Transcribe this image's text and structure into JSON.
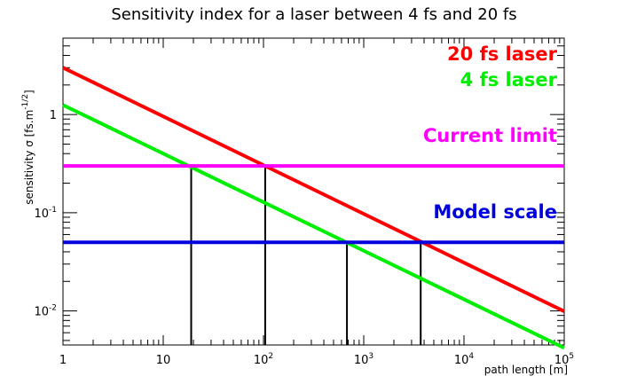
{
  "chart_data": {
    "type": "line",
    "title": "Sensitivity index for a laser between 4 fs and 20 fs",
    "xlabel": "path length [m]",
    "ylabel": {
      "main": "sensitivity σ [fs.m",
      "exponent": "-1/2",
      "close": "]"
    },
    "xscale": "log",
    "yscale": "log",
    "xlim": [
      1,
      100000
    ],
    "ylim": [
      0.0045,
      6.0
    ],
    "x_ticks": [
      {
        "value": 1,
        "label": "1"
      },
      {
        "value": 10,
        "label": "10"
      },
      {
        "value": 100,
        "base": "10",
        "exp": "2"
      },
      {
        "value": 1000,
        "base": "10",
        "exp": "3"
      },
      {
        "value": 10000,
        "base": "10",
        "exp": "4"
      },
      {
        "value": 100000,
        "base": "10",
        "exp": "5"
      }
    ],
    "y_ticks": [
      {
        "value": 1,
        "label": "1"
      },
      {
        "value": 0.1,
        "base": "10",
        "exp": "-1"
      },
      {
        "value": 0.01,
        "base": "10",
        "exp": "-2"
      }
    ],
    "series": [
      {
        "name": "20 fs laser",
        "color": "#ff0000",
        "x": [
          1,
          100000
        ],
        "y": [
          3.0,
          0.0099
        ]
      },
      {
        "name": "4 fs laser",
        "color": "#00ee00",
        "x": [
          1,
          100000
        ],
        "y": [
          1.25,
          0.0042
        ]
      },
      {
        "name": "Current limit",
        "color": "#ff00ff",
        "x": [
          1,
          100000
        ],
        "y": [
          0.3,
          0.3
        ]
      },
      {
        "name": "Model scale",
        "color": "#0000dd",
        "x": [
          1,
          100000
        ],
        "y": [
          0.05,
          0.05
        ]
      }
    ],
    "crossings": [
      {
        "x": 19,
        "y": 0.3
      },
      {
        "x": 104,
        "y": 0.3
      },
      {
        "x": 680,
        "y": 0.05
      },
      {
        "x": 3700,
        "y": 0.05
      }
    ],
    "grid": false,
    "legend_placement": "top-right"
  }
}
